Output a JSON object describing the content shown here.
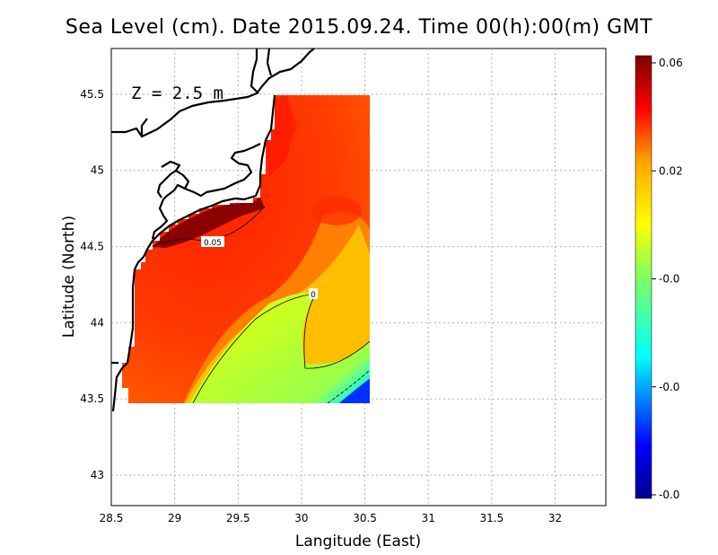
{
  "title": "Sea Level (cm). Date 2015.09.24. Time 00(h):00(m) GMT",
  "depth_label": "Z = 2.5 m",
  "chart_data": {
    "type": "heatmap",
    "xlabel": "Langitude (East)",
    "ylabel": "Latitude (North)",
    "xlim": [
      28.5,
      32.4
    ],
    "ylim": [
      42.8,
      45.8
    ],
    "x_ticks": [
      "28.5",
      "29",
      "29.5",
      "30",
      "30.5",
      "31",
      "31.5",
      "32"
    ],
    "y_ticks": [
      "43",
      "43.5",
      "44",
      "44.5",
      "45",
      "45.5"
    ],
    "grid": true,
    "data_extent": {
      "lon": [
        28.65,
        30.55
      ],
      "lat": [
        43.48,
        45.5
      ]
    },
    "contours": [
      {
        "label": "0.05",
        "level": 0.05
      },
      {
        "label": "0",
        "level": 0
      }
    ],
    "colorbar": {
      "tick_labels": [
        "0.06",
        "0.02",
        "-0.0",
        "-0.0",
        "-0.0"
      ],
      "colors": [
        "#7f0000",
        "#ff0000",
        "#ffa500",
        "#ffff00",
        "#00ffff",
        "#0000ff",
        "#00008b"
      ]
    }
  }
}
